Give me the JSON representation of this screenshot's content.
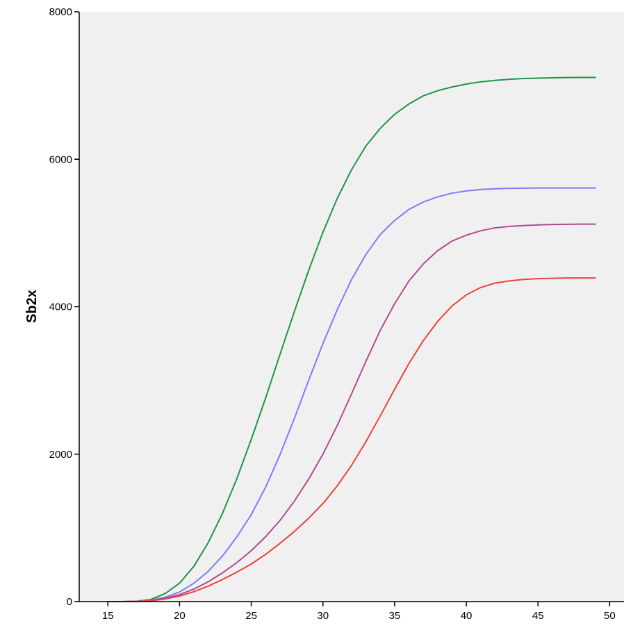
{
  "chart_data": {
    "type": "line",
    "title": "",
    "xlabel": "",
    "ylabel": "Sb2x",
    "xlim": [
      13,
      51
    ],
    "ylim": [
      0,
      8000
    ],
    "xticks": [
      15,
      20,
      25,
      30,
      35,
      40,
      45,
      50
    ],
    "yticks": [
      0,
      2000,
      4000,
      6000,
      8000
    ],
    "grid": false,
    "legend": "none",
    "plot_background": "#f0f0f0",
    "x": [
      15,
      16,
      17,
      18,
      19,
      20,
      21,
      22,
      23,
      24,
      25,
      26,
      27,
      28,
      29,
      30,
      31,
      32,
      33,
      34,
      35,
      36,
      37,
      38,
      39,
      40,
      41,
      42,
      43,
      44,
      45,
      46,
      47,
      48,
      49
    ],
    "series": [
      {
        "color": "#1e9448",
        "values": [
          0,
          0,
          5,
          30,
          110,
          250,
          480,
          800,
          1200,
          1670,
          2200,
          2760,
          3350,
          3930,
          4490,
          5010,
          5470,
          5860,
          6180,
          6420,
          6610,
          6750,
          6860,
          6930,
          6980,
          7020,
          7050,
          7070,
          7085,
          7095,
          7100,
          7105,
          7108,
          7110,
          7110
        ]
      },
      {
        "color": "#7b7bff",
        "values": [
          0,
          0,
          3,
          20,
          60,
          130,
          250,
          410,
          620,
          880,
          1180,
          1550,
          1990,
          2480,
          3000,
          3500,
          3960,
          4370,
          4710,
          4980,
          5170,
          5320,
          5420,
          5490,
          5540,
          5570,
          5590,
          5600,
          5605,
          5608,
          5610,
          5610,
          5610,
          5610,
          5610
        ]
      },
      {
        "color": "#b04a90",
        "values": [
          0,
          0,
          2,
          15,
          45,
          95,
          170,
          270,
          390,
          530,
          690,
          880,
          1100,
          1360,
          1660,
          2000,
          2390,
          2820,
          3260,
          3680,
          4040,
          4350,
          4580,
          4760,
          4890,
          4970,
          5030,
          5070,
          5090,
          5100,
          5110,
          5115,
          5118,
          5120,
          5120
        ]
      },
      {
        "color": "#ee4040",
        "values": [
          0,
          0,
          2,
          12,
          35,
          75,
          135,
          210,
          300,
          400,
          510,
          640,
          790,
          950,
          1130,
          1330,
          1570,
          1850,
          2170,
          2520,
          2880,
          3230,
          3540,
          3800,
          4010,
          4160,
          4260,
          4320,
          4350,
          4370,
          4380,
          4385,
          4390,
          4390,
          4390
        ]
      }
    ]
  }
}
